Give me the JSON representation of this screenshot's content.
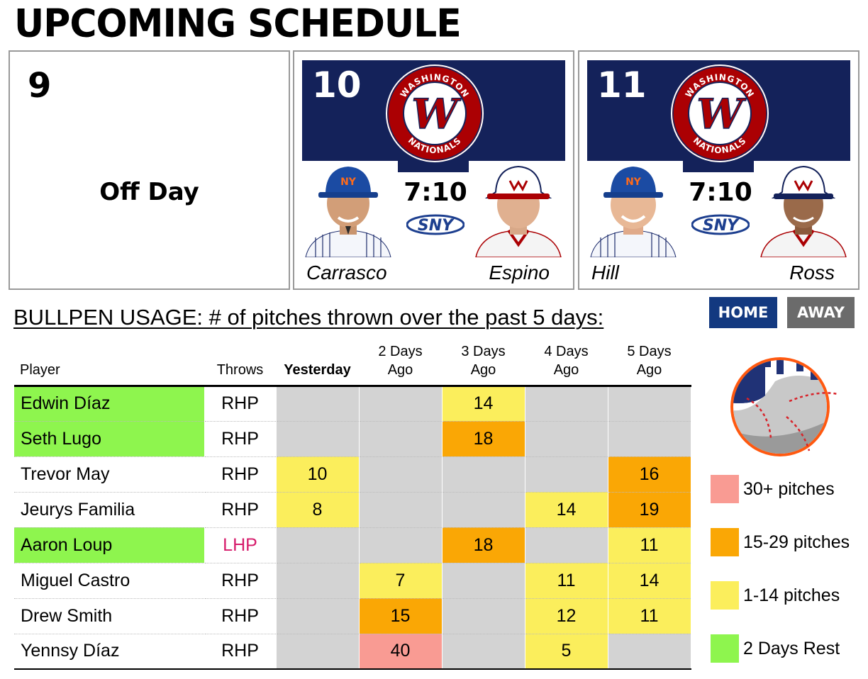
{
  "title": "UPCOMING SCHEDULE",
  "games": [
    {
      "day": "9",
      "off_text": "Off Day"
    },
    {
      "day": "10",
      "time": "7:10",
      "network": "SNY",
      "home_pitcher": "Carrasco",
      "away_pitcher": "Espino",
      "opponent_logo_text": {
        "top": "WASHINGTON",
        "bottom": "NATIONALS"
      }
    },
    {
      "day": "11",
      "time": "7:10",
      "network": "SNY",
      "home_pitcher": "Hill",
      "away_pitcher": "Ross",
      "opponent_logo_text": {
        "top": "WASHINGTON",
        "bottom": "NATIONALS"
      }
    }
  ],
  "bullpen": {
    "heading": "BULLPEN USAGE: # of pitches thrown over the past 5 days:",
    "toggle": {
      "home": "HOME",
      "away": "AWAY",
      "selected": "home"
    },
    "columns": {
      "player": "Player",
      "throws": "Throws",
      "d1": "Yesterday",
      "d2": [
        "2 Days",
        "Ago"
      ],
      "d3": [
        "3 Days",
        "Ago"
      ],
      "d4": [
        "4 Days",
        "Ago"
      ],
      "d5": [
        "5 Days",
        "Ago"
      ]
    },
    "rows": [
      {
        "player": "Edwin Díaz",
        "throws": "RHP",
        "rest": true,
        "pitches": [
          "",
          "",
          "14",
          "",
          ""
        ]
      },
      {
        "player": "Seth Lugo",
        "throws": "RHP",
        "rest": true,
        "pitches": [
          "",
          "",
          "18",
          "",
          ""
        ]
      },
      {
        "player": "Trevor May",
        "throws": "RHP",
        "rest": false,
        "pitches": [
          "10",
          "",
          "",
          "",
          "16"
        ]
      },
      {
        "player": "Jeurys Familia",
        "throws": "RHP",
        "rest": false,
        "pitches": [
          "8",
          "",
          "",
          "14",
          "19"
        ]
      },
      {
        "player": "Aaron Loup",
        "throws": "LHP",
        "rest": true,
        "pitches": [
          "",
          "",
          "18",
          "",
          "11"
        ]
      },
      {
        "player": "Miguel Castro",
        "throws": "RHP",
        "rest": false,
        "pitches": [
          "",
          "7",
          "",
          "11",
          "14"
        ]
      },
      {
        "player": "Drew Smith",
        "throws": "RHP",
        "rest": false,
        "pitches": [
          "",
          "15",
          "",
          "12",
          "11"
        ]
      },
      {
        "player": "Yennsy Díaz",
        "throws": "RHP",
        "rest": false,
        "pitches": [
          "",
          "40",
          "",
          "5",
          ""
        ]
      }
    ]
  },
  "legend": [
    {
      "label": "30+ pitches",
      "color": "#f99b93"
    },
    {
      "label": "15-29 pitches",
      "color": "#faa705"
    },
    {
      "label": "1-14 pitches",
      "color": "#fbee5c"
    },
    {
      "label": "2 Days Rest",
      "color": "#8ef54e"
    }
  ],
  "colors": {
    "empty_cell": "#d3d3d3",
    "rest": "#8ef54e",
    "banner": "#14225a",
    "lhp": "#d61a6a"
  }
}
